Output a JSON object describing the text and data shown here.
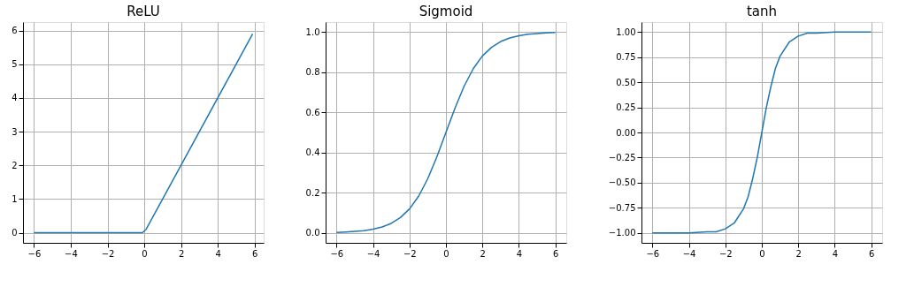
{
  "chart_data": [
    {
      "type": "line",
      "title": "ReLU",
      "x": [
        -6,
        -0.1,
        0.1,
        5.9
      ],
      "series": [
        {
          "color": "#1f77b4",
          "values": [
            0,
            0,
            0.1,
            5.9
          ]
        }
      ],
      "xlim": [
        -6.6,
        6.5
      ],
      "ylim": [
        -0.3,
        6.25
      ],
      "xticks": [
        {
          "value": -6,
          "label": "−6"
        },
        {
          "value": -4,
          "label": "−4"
        },
        {
          "value": -2,
          "label": "−2"
        },
        0,
        2,
        4,
        6
      ],
      "yticks": [
        0,
        1,
        2,
        3,
        4,
        5,
        6
      ],
      "grid": true
    },
    {
      "type": "line",
      "title": "Sigmoid",
      "x": [
        -6,
        -5.5,
        -5,
        -4.5,
        -4,
        -3.5,
        -3,
        -2.5,
        -2,
        -1.5,
        -1,
        -0.5,
        0,
        0.5,
        1,
        1.5,
        2,
        2.5,
        3,
        3.5,
        4,
        4.5,
        5,
        5.5,
        6
      ],
      "series": [
        {
          "color": "#1f77b4",
          "values": [
            0.002,
            0.004,
            0.007,
            0.011,
            0.018,
            0.029,
            0.047,
            0.076,
            0.119,
            0.182,
            0.269,
            0.378,
            0.5,
            0.622,
            0.731,
            0.818,
            0.881,
            0.924,
            0.953,
            0.971,
            0.982,
            0.989,
            0.993,
            0.996,
            0.998
          ]
        }
      ],
      "xlim": [
        -6.6,
        6.6
      ],
      "ylim": [
        -0.05,
        1.05
      ],
      "xticks": [
        {
          "value": -6,
          "label": "−6"
        },
        {
          "value": -4,
          "label": "−4"
        },
        {
          "value": -2,
          "label": "−2"
        },
        0,
        2,
        4,
        6
      ],
      "yticks": [
        {
          "value": 0,
          "label": "0.0"
        },
        0.2,
        0.4,
        0.6,
        0.8,
        {
          "value": 1,
          "label": "1.0"
        }
      ],
      "grid": true
    },
    {
      "type": "line",
      "title": "tanh",
      "x": [
        -6,
        -4,
        -3,
        -2.5,
        -2,
        -1.5,
        -1,
        -0.75,
        -0.5,
        -0.25,
        0,
        0.25,
        0.5,
        0.75,
        1,
        1.5,
        2,
        2.5,
        3,
        4,
        6
      ],
      "series": [
        {
          "color": "#1f77b4",
          "values": [
            -1.0,
            -1.0,
            -0.99,
            -0.99,
            -0.96,
            -0.9,
            -0.76,
            -0.64,
            -0.46,
            -0.25,
            0,
            0.25,
            0.46,
            0.64,
            0.76,
            0.9,
            0.96,
            0.99,
            0.99,
            1.0,
            1.0
          ]
        }
      ],
      "xlim": [
        -6.6,
        6.6
      ],
      "ylim": [
        -1.1,
        1.1
      ],
      "xticks": [
        {
          "value": -6,
          "label": "−6"
        },
        {
          "value": -4,
          "label": "−4"
        },
        {
          "value": -2,
          "label": "−2"
        },
        0,
        2,
        4,
        6
      ],
      "yticks": [
        {
          "value": -1,
          "label": "−1.00"
        },
        {
          "value": -0.75,
          "label": "−0.75"
        },
        {
          "value": -0.5,
          "label": "−0.50"
        },
        {
          "value": -0.25,
          "label": "−0.25"
        },
        {
          "value": 0,
          "label": "0.00"
        },
        {
          "value": 0.25,
          "label": "0.25"
        },
        {
          "value": 0.5,
          "label": "0.50"
        },
        {
          "value": 0.75,
          "label": "0.75"
        },
        {
          "value": 1,
          "label": "1.00"
        }
      ],
      "grid": true
    }
  ]
}
